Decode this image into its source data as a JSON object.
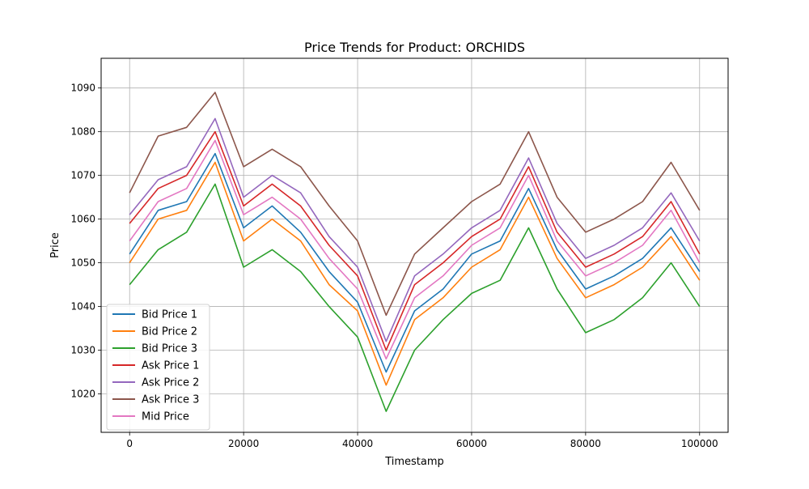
{
  "chart_data": {
    "type": "line",
    "title": "Price Trends for Product: ORCHIDS",
    "xlabel": "Timestamp",
    "ylabel": "Price",
    "xlim": [
      -5000,
      105000
    ],
    "ylim": [
      1011.2,
      1096.8
    ],
    "xticks": [
      0,
      20000,
      40000,
      60000,
      80000,
      100000
    ],
    "xtick_labels": [
      "0",
      "20000",
      "40000",
      "60000",
      "80000",
      "100000"
    ],
    "yticks": [
      1020,
      1030,
      1040,
      1050,
      1060,
      1070,
      1080,
      1090
    ],
    "ytick_labels": [
      "1020",
      "1030",
      "1040",
      "1050",
      "1060",
      "1070",
      "1080",
      "1090"
    ],
    "grid": true,
    "legend_position": "lower-left",
    "x": [
      0,
      5000,
      10000,
      15000,
      20000,
      25000,
      30000,
      35000,
      40000,
      45000,
      50000,
      55000,
      60000,
      65000,
      70000,
      75000,
      80000,
      85000,
      90000,
      95000,
      100000
    ],
    "series": [
      {
        "name": "Bid Price 1",
        "color": "#1f77b4",
        "values": [
          1052,
          1062,
          1064,
          1075,
          1058,
          1063,
          1057,
          1048,
          1041,
          1025,
          1039,
          1044,
          1052,
          1055,
          1067,
          1053,
          1044,
          1047,
          1051,
          1058,
          1048
        ]
      },
      {
        "name": "Bid Price 2",
        "color": "#ff7f0e",
        "values": [
          1050,
          1060,
          1062,
          1073,
          1055,
          1060,
          1055,
          1045,
          1039,
          1022,
          1037,
          1042,
          1049,
          1053,
          1065,
          1051,
          1042,
          1045,
          1049,
          1056,
          1046
        ]
      },
      {
        "name": "Bid Price 3",
        "color": "#2ca02c",
        "values": [
          1045,
          1053,
          1057,
          1068,
          1049,
          1053,
          1048,
          1040,
          1033,
          1016,
          1030,
          1037,
          1043,
          1046,
          1058,
          1044,
          1034,
          1037,
          1042,
          1050,
          1040
        ]
      },
      {
        "name": "Ask Price 1",
        "color": "#d62728",
        "values": [
          1059,
          1067,
          1070,
          1080,
          1063,
          1068,
          1063,
          1054,
          1047,
          1030,
          1045,
          1050,
          1056,
          1060,
          1072,
          1057,
          1049,
          1052,
          1056,
          1064,
          1052
        ]
      },
      {
        "name": "Ask Price 2",
        "color": "#9467bd",
        "values": [
          1061,
          1069,
          1072,
          1083,
          1065,
          1070,
          1066,
          1056,
          1049,
          1032,
          1047,
          1052,
          1058,
          1062,
          1074,
          1059,
          1051,
          1054,
          1058,
          1066,
          1055
        ]
      },
      {
        "name": "Ask Price 3",
        "color": "#8c564b",
        "values": [
          1066,
          1079,
          1081,
          1089,
          1072,
          1076,
          1072,
          1063,
          1055,
          1038,
          1052,
          1058,
          1064,
          1068,
          1080,
          1065,
          1057,
          1060,
          1064,
          1073,
          1062
        ]
      },
      {
        "name": "Mid Price",
        "color": "#e377c2",
        "values": [
          1055,
          1064,
          1067,
          1078,
          1061,
          1065,
          1060,
          1051,
          1044,
          1028,
          1042,
          1047,
          1054,
          1058,
          1070,
          1055,
          1047,
          1050,
          1054,
          1062,
          1050
        ]
      }
    ]
  }
}
